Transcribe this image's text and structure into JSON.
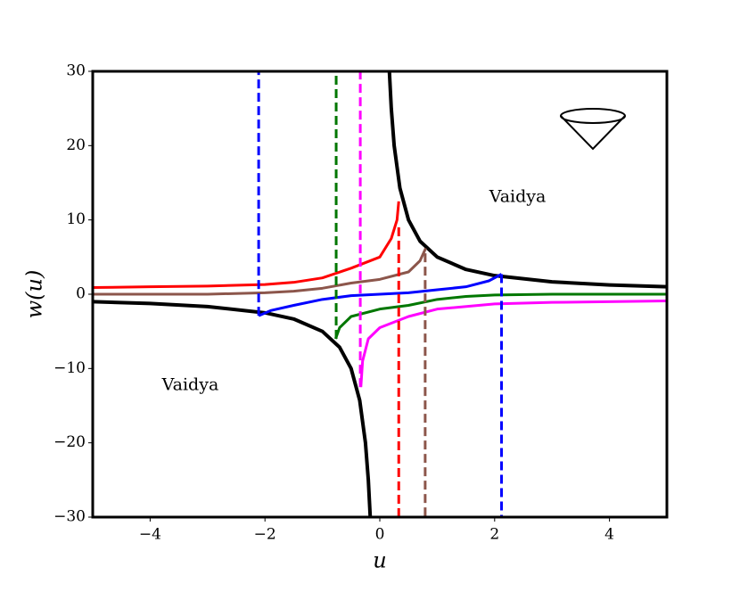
{
  "chart_data": {
    "type": "line",
    "x_label": "u",
    "y_label": "w(u)",
    "xlim": [
      -5,
      5
    ],
    "ylim": [
      -30,
      30
    ],
    "xticks": [
      {
        "value": -4,
        "label": "−4"
      },
      {
        "value": -2,
        "label": "−2"
      },
      0,
      2,
      4
    ],
    "yticks": [
      {
        "value": -30,
        "label": "−30"
      },
      {
        "value": -20,
        "label": "−20"
      },
      {
        "value": -10,
        "label": "−10"
      },
      0,
      10,
      20,
      30
    ],
    "grid": false,
    "series": [
      {
        "color": "#000000",
        "linestyle": "solid",
        "linewidth": 4,
        "x": [
          -5,
          -4,
          -3,
          -2,
          -1.5,
          -1,
          -0.7,
          -0.5,
          -0.35,
          -0.25,
          -0.2,
          -0.167,
          null,
          0.167,
          0.2,
          0.25,
          0.35,
          0.5,
          0.7,
          1,
          1.5,
          2,
          3,
          4,
          5
        ],
        "values": [
          -1,
          -1.25,
          -1.667,
          -2.5,
          -3.333,
          -5,
          -7.143,
          -10,
          -14.286,
          -20,
          -25,
          -29.94,
          null,
          29.94,
          25,
          20,
          14.286,
          10,
          7.143,
          5,
          3.333,
          2.5,
          1.667,
          1.25,
          1
        ]
      },
      {
        "color": "#ff0000",
        "linestyle": "solid",
        "linewidth": 3,
        "x": [
          -5,
          -4,
          -3,
          -2,
          -1.5,
          -1,
          -0.5,
          0,
          0.2,
          0.3,
          0.33
        ],
        "values": [
          0.9,
          1,
          1.1,
          1.3,
          1.6,
          2.2,
          3.5,
          5,
          7.5,
          10,
          12.5
        ]
      },
      {
        "color": "#8c564b",
        "linestyle": "solid",
        "linewidth": 3,
        "x": [
          -5,
          -3,
          -2,
          -1.5,
          -1,
          -0.5,
          0,
          0.5,
          0.7,
          0.8
        ],
        "values": [
          0,
          0,
          0.2,
          0.4,
          0.8,
          1.5,
          2,
          3,
          4.5,
          6.2
        ]
      },
      {
        "color": "#0000ff",
        "linestyle": "solid",
        "linewidth": 3,
        "x": [
          -2.11,
          -1.9,
          -1.5,
          -1,
          -0.5,
          0,
          0.5,
          1,
          1.5,
          1.9,
          2.12
        ],
        "values": [
          -2.9,
          -2.2,
          -1.5,
          -0.7,
          -0.2,
          0,
          0.2,
          0.6,
          1,
          1.8,
          2.7
        ]
      },
      {
        "color": "#007700",
        "linestyle": "solid",
        "linewidth": 3,
        "x": [
          -0.77,
          -0.7,
          -0.5,
          0,
          0.5,
          1,
          1.5,
          2,
          3,
          5
        ],
        "values": [
          -6,
          -4.5,
          -3,
          -2,
          -1.5,
          -0.7,
          -0.3,
          -0.1,
          0,
          0
        ]
      },
      {
        "color": "#ff00ff",
        "linestyle": "solid",
        "linewidth": 3,
        "x": [
          -0.33,
          -0.3,
          -0.2,
          0,
          0.5,
          1,
          2,
          3,
          5
        ],
        "values": [
          -12.5,
          -9,
          -6,
          -4.5,
          -3,
          -2,
          -1.3,
          -1.1,
          -0.9
        ]
      },
      {
        "color": "#0000ff",
        "linestyle": "dashed",
        "linewidth": 3,
        "x": [
          -2.11,
          -2.11
        ],
        "values": [
          -2.9,
          30
        ]
      },
      {
        "color": "#007700",
        "linestyle": "dashed",
        "linewidth": 3,
        "x": [
          -0.76,
          -0.76
        ],
        "values": [
          -6,
          30
        ]
      },
      {
        "color": "#ff00ff",
        "linestyle": "dashed",
        "linewidth": 3,
        "x": [
          -0.34,
          -0.34
        ],
        "values": [
          -12.5,
          30
        ]
      },
      {
        "color": "#ff0000",
        "linestyle": "dashed",
        "linewidth": 3,
        "x": [
          0.33,
          0.33
        ],
        "values": [
          9,
          -30
        ]
      },
      {
        "color": "#8c564b",
        "linestyle": "dashed",
        "linewidth": 3,
        "x": [
          0.79,
          0.79
        ],
        "values": [
          5.5,
          -30
        ]
      },
      {
        "color": "#0000ff",
        "linestyle": "dashed",
        "linewidth": 3,
        "x": [
          2.12,
          2.12
        ],
        "values": [
          2.7,
          -30
        ]
      }
    ],
    "annotations": [
      {
        "text": "Vaidya",
        "x": 2.4,
        "y": 13
      },
      {
        "text": "Vaidya",
        "x": -3.3,
        "y": -12.3
      }
    ]
  }
}
